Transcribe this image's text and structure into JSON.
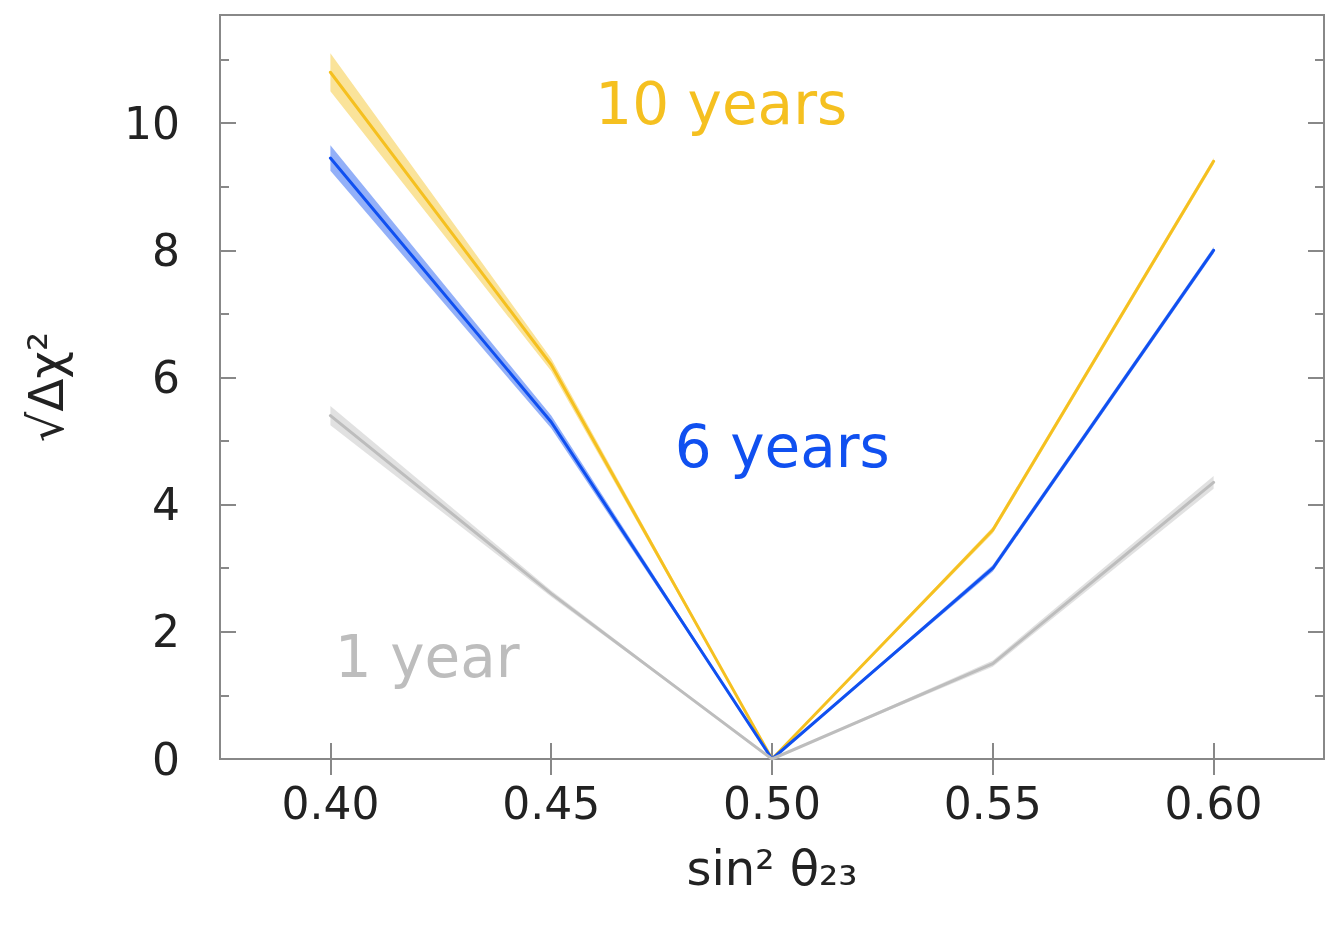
{
  "chart_data": {
    "type": "line",
    "xlabel": "sin² θ₂₃",
    "ylabel": "√Δχ²",
    "x": [
      0.4,
      0.45,
      0.5,
      0.55,
      0.6
    ],
    "xlim": [
      0.375,
      0.625
    ],
    "xticks": [
      {
        "value": 0.4,
        "label": "0.40"
      },
      {
        "value": 0.45,
        "label": "0.45"
      },
      {
        "value": 0.5,
        "label": "0.50"
      },
      {
        "value": 0.55,
        "label": "0.55"
      },
      {
        "value": 0.6,
        "label": "0.60"
      }
    ],
    "ylim": [
      0,
      11.7
    ],
    "yticks": [
      0,
      2,
      4,
      6,
      8,
      10
    ],
    "grid": false,
    "legend": false,
    "marker": "none",
    "line_style": "solid",
    "series": [
      {
        "name": "10 years",
        "color": "#f5c020",
        "values": [
          10.8,
          6.2,
          0,
          3.6,
          9.4
        ],
        "lower": [
          10.5,
          6.1,
          0,
          3.55,
          9.35
        ],
        "upper": [
          11.1,
          6.3,
          0,
          3.65,
          9.45
        ]
      },
      {
        "name": "6 years",
        "color": "#1050f0",
        "values": [
          9.45,
          5.3,
          0,
          3.0,
          8.0
        ],
        "lower": [
          9.25,
          5.2,
          0,
          2.95,
          7.95
        ],
        "upper": [
          9.65,
          5.4,
          0,
          3.05,
          8.05
        ]
      },
      {
        "name": "1 year",
        "color": "#bdbdbd",
        "values": [
          5.4,
          2.6,
          0,
          1.5,
          4.35
        ],
        "lower": [
          5.25,
          2.55,
          0,
          1.45,
          4.25
        ],
        "upper": [
          5.55,
          2.65,
          0,
          1.55,
          4.45
        ]
      }
    ]
  }
}
